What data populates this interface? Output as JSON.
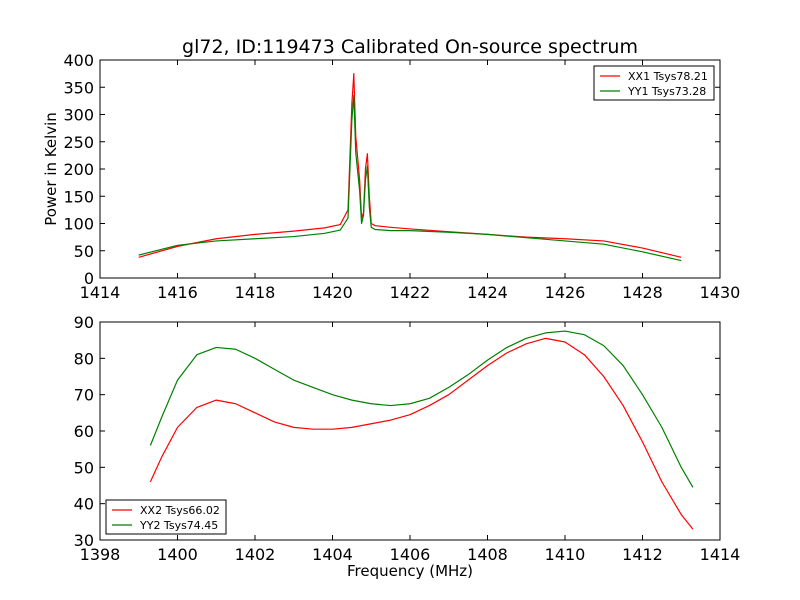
{
  "figure": {
    "title": "gl72, ID:119473 Calibrated On-source spectrum"
  },
  "chart_data": [
    {
      "type": "line",
      "ylabel": "Power in Kelvin",
      "xlabel": "",
      "xlim": [
        1414,
        1430
      ],
      "ylim": [
        0,
        400
      ],
      "xticks": [
        1414,
        1416,
        1418,
        1420,
        1422,
        1424,
        1426,
        1428,
        1430
      ],
      "yticks": [
        0,
        50,
        100,
        150,
        200,
        250,
        300,
        350,
        400
      ],
      "legend_position": "top-right",
      "grid": false,
      "series": [
        {
          "name": "XX1 Tsys78.21",
          "color": "#ff0000",
          "x": [
            1415.0,
            1416.0,
            1417.0,
            1418.0,
            1419.0,
            1419.8,
            1420.2,
            1420.4,
            1420.5,
            1420.55,
            1420.6,
            1420.7,
            1420.75,
            1420.8,
            1420.85,
            1420.9,
            1420.95,
            1421.0,
            1421.1,
            1421.5,
            1422.0,
            1423.0,
            1424.0,
            1425.0,
            1426.0,
            1427.0,
            1428.0,
            1429.0
          ],
          "y": [
            38,
            58,
            72,
            80,
            86,
            92,
            98,
            125,
            320,
            375,
            260,
            180,
            110,
            120,
            200,
            228,
            150,
            100,
            96,
            93,
            90,
            85,
            80,
            75,
            72,
            68,
            55,
            38
          ]
        },
        {
          "name": "YY1 Tsys73.28",
          "color": "#008000",
          "x": [
            1415.0,
            1416.0,
            1417.0,
            1418.0,
            1419.0,
            1419.8,
            1420.2,
            1420.4,
            1420.5,
            1420.55,
            1420.6,
            1420.7,
            1420.75,
            1420.8,
            1420.85,
            1420.9,
            1420.95,
            1421.0,
            1421.1,
            1421.5,
            1422.0,
            1423.0,
            1424.0,
            1425.0,
            1426.0,
            1427.0,
            1428.0,
            1429.0
          ],
          "y": [
            42,
            60,
            68,
            72,
            76,
            82,
            88,
            110,
            290,
            335,
            230,
            160,
            100,
            115,
            180,
            205,
            130,
            93,
            89,
            87,
            87,
            84,
            80,
            74,
            68,
            62,
            48,
            32
          ]
        }
      ]
    },
    {
      "type": "line",
      "ylabel": "",
      "xlabel": "Frequency (MHz)",
      "xlim": [
        1398,
        1414
      ],
      "ylim": [
        30,
        90
      ],
      "xticks": [
        1398,
        1400,
        1402,
        1404,
        1406,
        1408,
        1410,
        1412,
        1414
      ],
      "yticks": [
        30,
        40,
        50,
        60,
        70,
        80,
        90
      ],
      "legend_position": "bottom-left",
      "grid": false,
      "series": [
        {
          "name": "XX2 Tsys66.02",
          "color": "#ff0000",
          "x": [
            1399.3,
            1399.6,
            1400.0,
            1400.5,
            1401.0,
            1401.5,
            1402.0,
            1402.5,
            1403.0,
            1403.5,
            1404.0,
            1404.5,
            1405.0,
            1405.5,
            1406.0,
            1406.5,
            1407.0,
            1407.5,
            1408.0,
            1408.5,
            1409.0,
            1409.5,
            1410.0,
            1410.5,
            1411.0,
            1411.5,
            1412.0,
            1412.5,
            1413.0,
            1413.3
          ],
          "y": [
            46,
            53,
            61,
            66.5,
            68.5,
            67.5,
            65,
            62.5,
            61,
            60.5,
            60.5,
            61,
            62,
            63,
            64.5,
            67,
            70,
            74,
            78,
            81.5,
            84,
            85.5,
            84.5,
            81,
            75,
            67,
            57,
            46,
            37,
            33
          ]
        },
        {
          "name": "YY2 Tsys74.45",
          "color": "#008000",
          "x": [
            1399.3,
            1399.6,
            1400.0,
            1400.5,
            1401.0,
            1401.5,
            1402.0,
            1402.5,
            1403.0,
            1403.5,
            1404.0,
            1404.5,
            1405.0,
            1405.5,
            1406.0,
            1406.5,
            1407.0,
            1407.5,
            1408.0,
            1408.5,
            1409.0,
            1409.5,
            1410.0,
            1410.5,
            1411.0,
            1411.5,
            1412.0,
            1412.5,
            1413.0,
            1413.3
          ],
          "y": [
            56,
            64,
            74,
            81,
            83,
            82.5,
            80,
            77,
            74,
            72,
            70,
            68.5,
            67.5,
            67,
            67.5,
            69,
            72,
            75.5,
            79.5,
            83,
            85.5,
            87,
            87.5,
            86.5,
            83.5,
            78,
            70,
            61,
            50,
            44.5
          ]
        }
      ]
    }
  ]
}
